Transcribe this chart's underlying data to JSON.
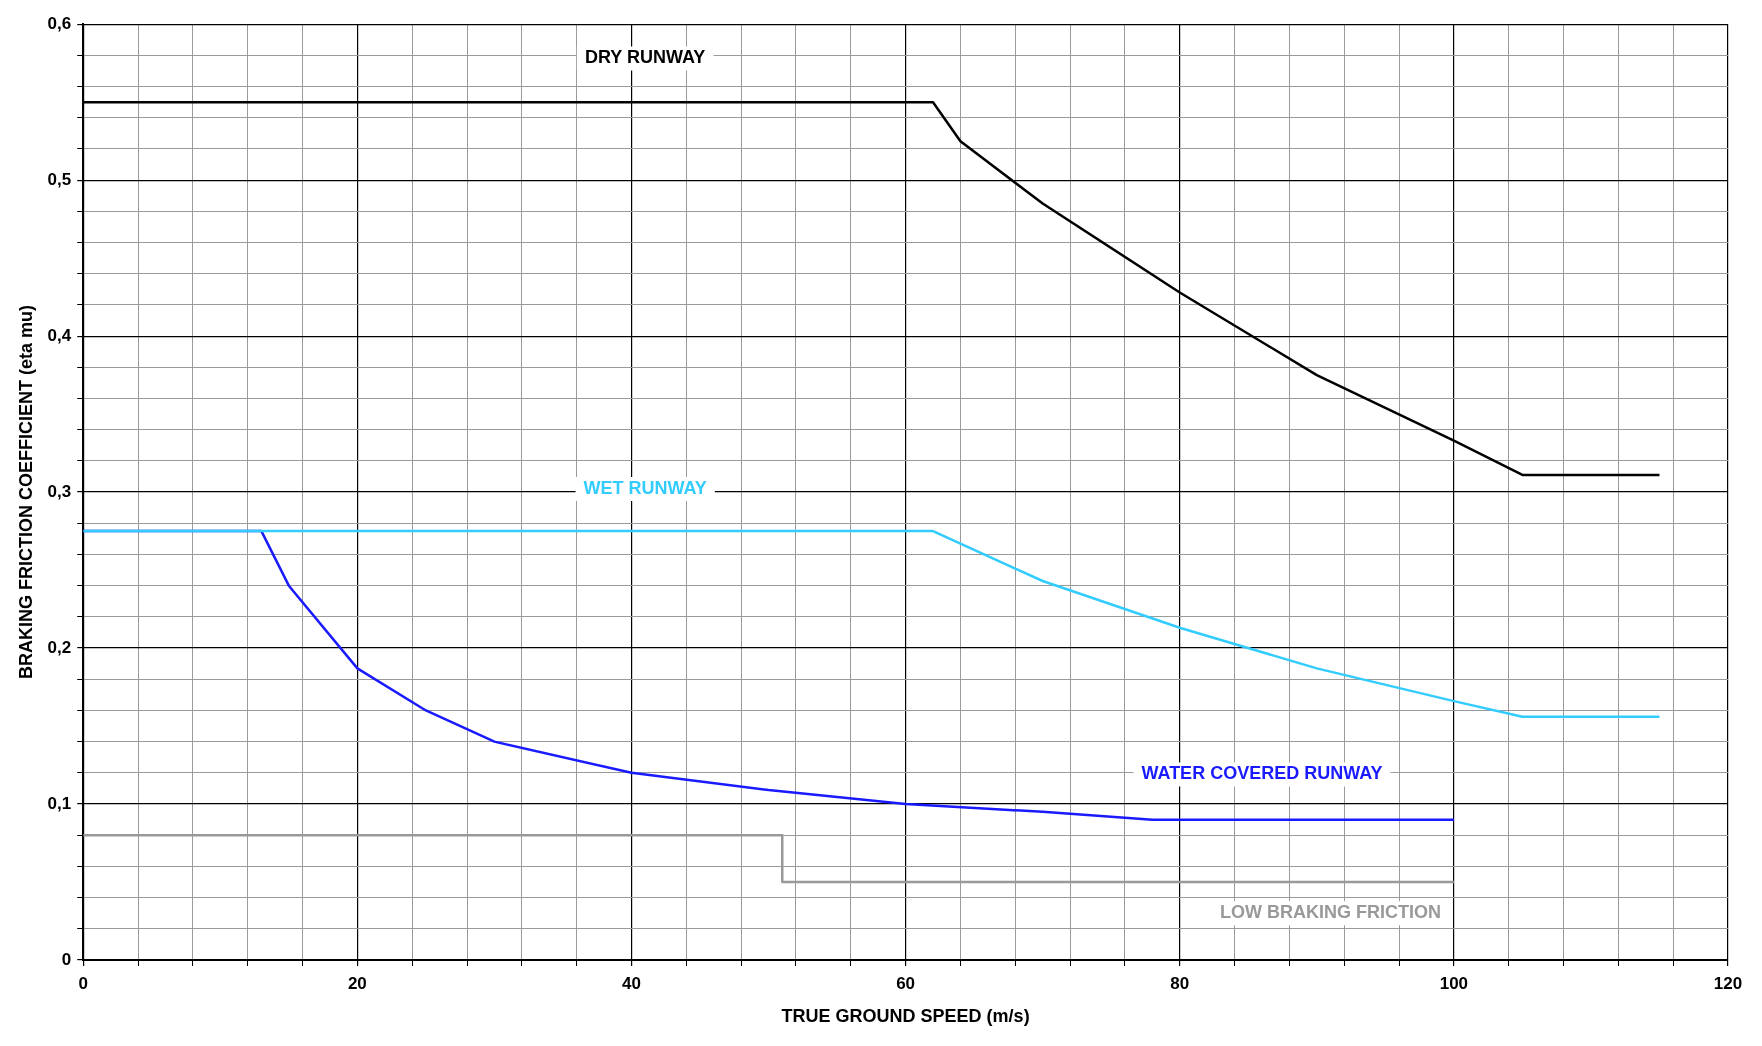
{
  "chart_data": {
    "type": "line",
    "xlabel": "TRUE GROUND SPEED (m/s)",
    "ylabel": "BRAKING FRICTION COEFFICIENT (eta mu)",
    "xlim": [
      0,
      120
    ],
    "ylim": [
      0,
      0.6
    ],
    "xticks": [
      0,
      {
        "value": 4,
        "label": null
      },
      {
        "value": 8,
        "label": null
      },
      {
        "value": 12,
        "label": null
      },
      {
        "value": 16,
        "label": null
      },
      20,
      {
        "value": 24,
        "label": null
      },
      {
        "value": 28,
        "label": null
      },
      {
        "value": 32,
        "label": null
      },
      {
        "value": 36,
        "label": null
      },
      40,
      {
        "value": 44,
        "label": null
      },
      {
        "value": 48,
        "label": null
      },
      {
        "value": 52,
        "label": null
      },
      {
        "value": 56,
        "label": null
      },
      60,
      {
        "value": 64,
        "label": null
      },
      {
        "value": 68,
        "label": null
      },
      {
        "value": 72,
        "label": null
      },
      {
        "value": 76,
        "label": null
      },
      80,
      {
        "value": 84,
        "label": null
      },
      {
        "value": 88,
        "label": null
      },
      {
        "value": 92,
        "label": null
      },
      {
        "value": 96,
        "label": null
      },
      100,
      {
        "value": 104,
        "label": null
      },
      {
        "value": 108,
        "label": null
      },
      {
        "value": 112,
        "label": null
      },
      {
        "value": 116,
        "label": null
      },
      120
    ],
    "yticks": [
      0,
      {
        "value": 0.02,
        "label": null
      },
      {
        "value": 0.04,
        "label": null
      },
      {
        "value": 0.06,
        "label": null
      },
      {
        "value": 0.08,
        "label": null
      },
      {
        "value": 0.1,
        "label": "0,1"
      },
      {
        "value": 0.12,
        "label": null
      },
      {
        "value": 0.14,
        "label": null
      },
      {
        "value": 0.16,
        "label": null
      },
      {
        "value": 0.18,
        "label": null
      },
      {
        "value": 0.2,
        "label": "0,2"
      },
      {
        "value": 0.22,
        "label": null
      },
      {
        "value": 0.24,
        "label": null
      },
      {
        "value": 0.26,
        "label": null
      },
      {
        "value": 0.28,
        "label": null
      },
      {
        "value": 0.3,
        "label": "0,3"
      },
      {
        "value": 0.32,
        "label": null
      },
      {
        "value": 0.34,
        "label": null
      },
      {
        "value": 0.36,
        "label": null
      },
      {
        "value": 0.38,
        "label": null
      },
      {
        "value": 0.4,
        "label": "0,4"
      },
      {
        "value": 0.42,
        "label": null
      },
      {
        "value": 0.44,
        "label": null
      },
      {
        "value": 0.46,
        "label": null
      },
      {
        "value": 0.48,
        "label": null
      },
      {
        "value": 0.5,
        "label": "0,5"
      },
      {
        "value": 0.52,
        "label": null
      },
      {
        "value": 0.54,
        "label": null
      },
      {
        "value": 0.56,
        "label": null
      },
      {
        "value": 0.58,
        "label": null
      },
      {
        "value": 0.6,
        "label": "0,6"
      }
    ],
    "grid": true,
    "legend": false,
    "marker": "none",
    "line_style": "solid",
    "series": [
      {
        "name": "DRY RUNWAY",
        "color": "#000000",
        "x": [
          0,
          62,
          64,
          70,
          80,
          90,
          100,
          105,
          115
        ],
        "values": [
          0.55,
          0.55,
          0.525,
          0.485,
          0.428,
          0.375,
          0.333,
          0.311,
          0.311
        ]
      },
      {
        "name": "WET RUNWAY",
        "color": "#33ccff",
        "x": [
          0,
          62,
          70,
          80,
          90,
          100,
          105,
          115
        ],
        "values": [
          0.275,
          0.275,
          0.243,
          0.213,
          0.187,
          0.166,
          0.156,
          0.156
        ]
      },
      {
        "name": "WATER COVERED RUNWAY",
        "color": "#1a1aff",
        "x": [
          0,
          13,
          15,
          20,
          25,
          30,
          40,
          50,
          60,
          70,
          78,
          100
        ],
        "values": [
          0.275,
          0.275,
          0.24,
          0.187,
          0.16,
          0.14,
          0.12,
          0.109,
          0.1,
          0.095,
          0.09,
          0.09
        ]
      },
      {
        "name": "LOW BRAKING FRICTION",
        "color": "#999999",
        "x": [
          0,
          51,
          51,
          100
        ],
        "values": [
          0.08,
          0.08,
          0.05,
          0.05
        ]
      }
    ]
  }
}
